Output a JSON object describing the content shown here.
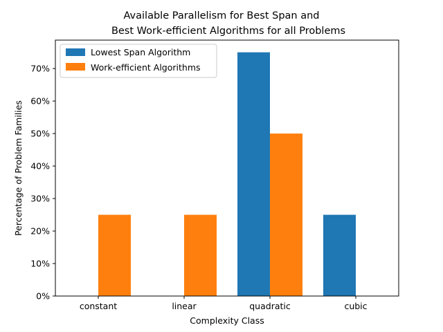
{
  "chart_data": {
    "type": "bar",
    "title_lines": [
      "Available Parallelism for Best Span and",
      "Best Work-efficient Algorithms for all Problems"
    ],
    "xlabel": "Complexity Class",
    "ylabel": "Percentage of Problem Families",
    "categories": [
      "constant",
      "linear",
      "quadratic",
      "cubic"
    ],
    "series": [
      {
        "name": "Lowest Span Algorithm",
        "color": "#1f77b4",
        "values": [
          0,
          0,
          75,
          25
        ]
      },
      {
        "name": "Work-efficient Algorithms",
        "color": "#ff7f0e",
        "values": [
          25,
          25,
          50,
          0
        ]
      }
    ],
    "ylim": [
      0,
      78.75
    ],
    "yticks": [
      0,
      10,
      20,
      30,
      40,
      50,
      60,
      70
    ],
    "ytick_labels": [
      "0%",
      "10%",
      "20%",
      "30%",
      "40%",
      "50%",
      "60%",
      "70%"
    ],
    "legend_position": "upper-left",
    "grid": false
  }
}
